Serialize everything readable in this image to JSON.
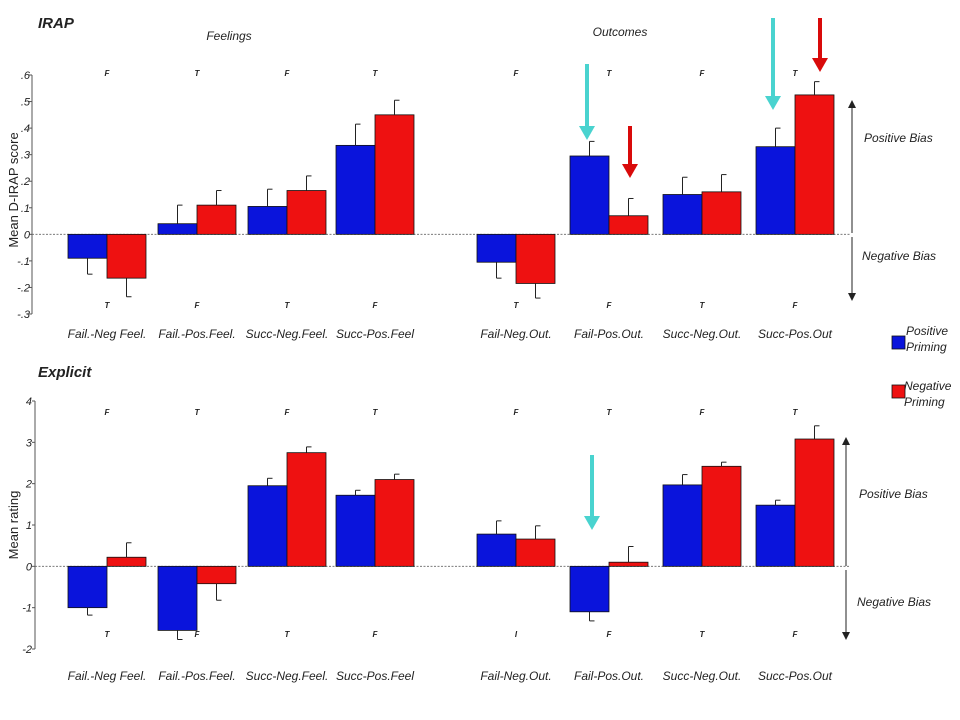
{
  "colors": {
    "positive": "#0a14dc",
    "negative": "#ee1111",
    "arrow_cyan": "#49d3cf",
    "arrow_red": "#d90a0a",
    "axis": "#555555"
  },
  "legend": {
    "positive": "Positive\nPriming",
    "negative": "Negative\nPriming"
  },
  "chart_data": [
    {
      "type": "bar",
      "title": "IRAP",
      "group_titles": [
        "Feelings",
        "Outcomes"
      ],
      "ylabel": "Mean D-IRAP score",
      "ylim": [
        -0.3,
        0.6
      ],
      "y_ticks": [
        ".6",
        ".5",
        ".4",
        ".3",
        ".2",
        ".1",
        "0",
        "-.1",
        "-.2",
        "-.3"
      ],
      "categories": [
        "Fail.-Neg Feel.",
        "Fail.-Pos.Feel.",
        "Succ-Neg.Feel.",
        "Succ-Pos.Feel",
        "Fail-Neg.Out.",
        "Fail-Pos.Out.",
        "Succ-Neg.Out.",
        "Succ-Pos.Out"
      ],
      "series": [
        {
          "name": "Positive Priming",
          "values": [
            -0.09,
            0.04,
            0.105,
            0.335,
            -0.105,
            0.295,
            0.15,
            0.33
          ],
          "errors": [
            0.06,
            0.07,
            0.065,
            0.08,
            0.06,
            0.055,
            0.065,
            0.07
          ]
        },
        {
          "name": "Negative Priming",
          "values": [
            -0.165,
            0.11,
            0.165,
            0.45,
            -0.185,
            0.07,
            0.16,
            0.525
          ],
          "errors": [
            0.07,
            0.055,
            0.055,
            0.055,
            0.055,
            0.065,
            0.065,
            0.05
          ]
        }
      ],
      "top_letters": [
        "F",
        "T",
        "F",
        "T",
        "F",
        "T",
        "F",
        "T"
      ],
      "bottom_letters": [
        "T",
        "F",
        "T",
        "F",
        "T",
        "F",
        "T",
        "F"
      ],
      "bias_labels": {
        "positive": "Positive Bias",
        "negative": "Negative Bias"
      }
    },
    {
      "type": "bar",
      "title": "Explicit",
      "ylabel": "Mean rating",
      "ylim": [
        -2,
        4
      ],
      "y_ticks": [
        "4",
        "3",
        "2",
        "1",
        "0",
        "-1",
        "-2"
      ],
      "categories": [
        "Fail.-Neg Feel.",
        "Fail.-Pos.Feel.",
        "Succ-Neg.Feel.",
        "Succ-Pos.Feel",
        "Fail-Neg.Out.",
        "Fail-Pos.Out.",
        "Succ-Neg.Out.",
        "Succ-Pos.Out"
      ],
      "series": [
        {
          "name": "Positive Priming",
          "values": [
            -1.0,
            -1.55,
            1.95,
            1.72,
            0.78,
            -1.1,
            1.97,
            1.48
          ],
          "errors": [
            0.18,
            0.22,
            0.18,
            0.12,
            0.32,
            0.22,
            0.25,
            0.12
          ]
        },
        {
          "name": "Negative Priming",
          "values": [
            0.22,
            -0.42,
            2.75,
            2.1,
            0.66,
            0.1,
            2.42,
            3.08
          ],
          "errors": [
            0.35,
            0.4,
            0.14,
            0.13,
            0.32,
            0.38,
            0.1,
            0.32
          ]
        }
      ],
      "top_letters": [
        "F",
        "T",
        "F",
        "T",
        "F",
        "T",
        "F",
        "T"
      ],
      "bottom_letters": [
        "T",
        "F",
        "T",
        "F",
        "I",
        "F",
        "T",
        "F"
      ],
      "bias_labels": {
        "positive": "Positive Bias",
        "negative": "Negative Bias"
      }
    }
  ]
}
